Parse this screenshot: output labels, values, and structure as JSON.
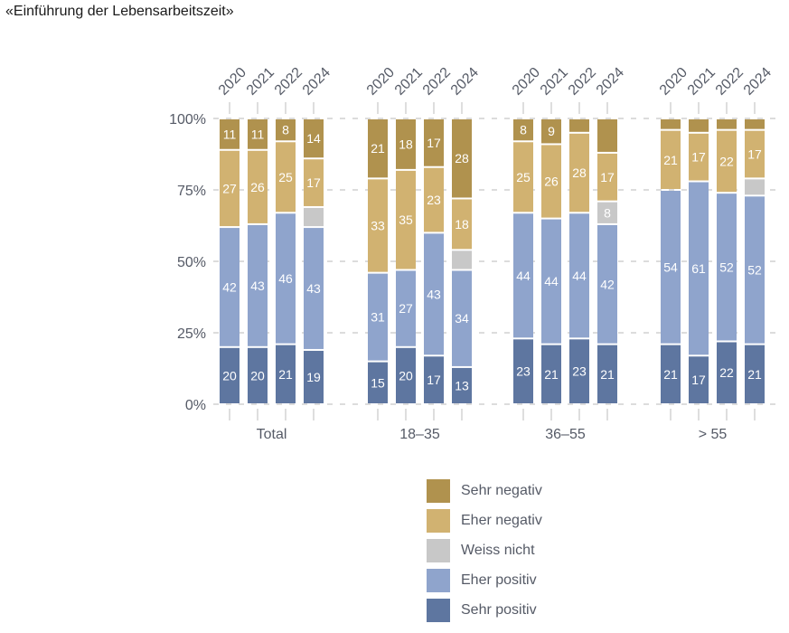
{
  "title": "«Einführung der Lebensarbeitszeit»",
  "chart_data": {
    "type": "bar",
    "stacked": true,
    "title": "«Einführung der Lebensarbeitszeit»",
    "xlabel": "",
    "ylabel": "",
    "ylim": [
      0,
      100
    ],
    "yticks": [
      "0%",
      "25%",
      "50%",
      "75%",
      "100%"
    ],
    "ytick_values": [
      0,
      25,
      50,
      75,
      100
    ],
    "grid": true,
    "legend_position": "bottom",
    "years": [
      "2020",
      "2021",
      "2022",
      "2024"
    ],
    "groups": [
      "Total",
      "18–35",
      "36–55",
      "> 55"
    ],
    "series": [
      {
        "name": "Sehr positiv",
        "color": "#5e76a0",
        "values": [
          [
            20,
            20,
            21,
            19
          ],
          [
            15,
            20,
            17,
            13
          ],
          [
            23,
            21,
            23,
            21
          ],
          [
            21,
            17,
            22,
            21
          ]
        ],
        "labels": [
          [
            "20",
            "20",
            "21",
            "19"
          ],
          [
            "15",
            "20",
            "17",
            "13"
          ],
          [
            "23",
            "21",
            "23",
            "21"
          ],
          [
            "21",
            "17",
            "22",
            "21"
          ]
        ]
      },
      {
        "name": "Eher positiv",
        "color": "#8fa4cc",
        "values": [
          [
            42,
            43,
            46,
            43
          ],
          [
            31,
            27,
            43,
            34
          ],
          [
            44,
            44,
            44,
            42
          ],
          [
            54,
            61,
            52,
            52
          ]
        ],
        "labels": [
          [
            "42",
            "43",
            "46",
            "43"
          ],
          [
            "31",
            "27",
            "43",
            "34"
          ],
          [
            "44",
            "44",
            "44",
            "42"
          ],
          [
            "54",
            "61",
            "52",
            "52"
          ]
        ]
      },
      {
        "name": "Weiss nicht",
        "color": "#c8c8c8",
        "values": [
          [
            0,
            0,
            0,
            7
          ],
          [
            0,
            0,
            0,
            7
          ],
          [
            0,
            0,
            0,
            8
          ],
          [
            0,
            0,
            0,
            6
          ]
        ],
        "labels": [
          [
            "",
            "",
            "",
            ""
          ],
          [
            "",
            "",
            "",
            ""
          ],
          [
            "",
            "",
            "",
            "8"
          ],
          [
            "",
            "",
            "",
            ""
          ]
        ]
      },
      {
        "name": "Eher negativ",
        "color": "#d1b271",
        "values": [
          [
            27,
            26,
            25,
            17
          ],
          [
            33,
            35,
            23,
            18
          ],
          [
            25,
            26,
            28,
            17
          ],
          [
            21,
            17,
            22,
            17
          ]
        ],
        "labels": [
          [
            "27",
            "26",
            "25",
            "17"
          ],
          [
            "33",
            "35",
            "23",
            "18"
          ],
          [
            "25",
            "26",
            "28",
            "17"
          ],
          [
            "21",
            "17",
            "22",
            "17"
          ]
        ]
      },
      {
        "name": "Sehr negativ",
        "color": "#b0924e",
        "values": [
          [
            11,
            11,
            8,
            14
          ],
          [
            21,
            18,
            17,
            28
          ],
          [
            8,
            9,
            5,
            12
          ],
          [
            4,
            5,
            4,
            4
          ]
        ],
        "labels": [
          [
            "11",
            "11",
            "8",
            "14"
          ],
          [
            "21",
            "18",
            "17",
            "28"
          ],
          [
            "8",
            "9",
            "",
            ""
          ],
          [
            "",
            "",
            "",
            ""
          ]
        ]
      }
    ]
  },
  "legend": [
    {
      "label": "Sehr negativ",
      "color": "#b0924e"
    },
    {
      "label": "Eher negativ",
      "color": "#d1b271"
    },
    {
      "label": "Weiss nicht",
      "color": "#c8c8c8"
    },
    {
      "label": "Eher positiv",
      "color": "#8fa4cc"
    },
    {
      "label": "Sehr positiv",
      "color": "#5e76a0"
    }
  ]
}
